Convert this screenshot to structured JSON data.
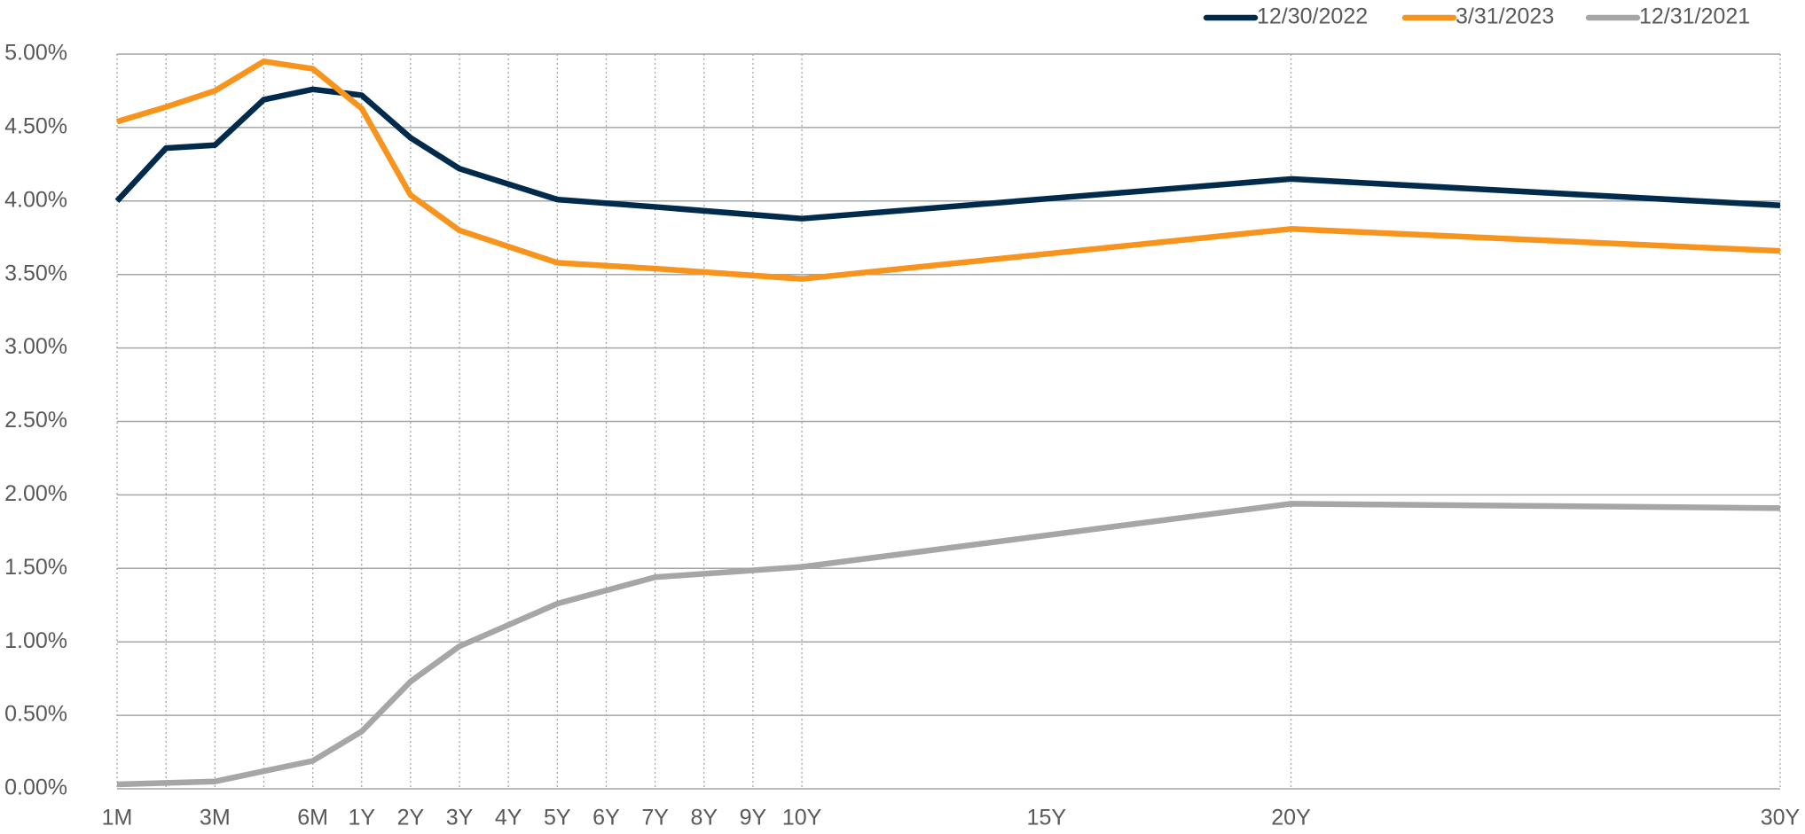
{
  "chart_data": {
    "type": "line",
    "x": [
      0,
      1,
      2,
      3,
      4,
      5,
      6,
      7,
      9,
      11,
      14,
      24,
      34
    ],
    "xlim": [
      0,
      34
    ],
    "xticks": [
      {
        "value": 0,
        "label": "1M"
      },
      {
        "value": 2,
        "label": "3M"
      },
      {
        "value": 4,
        "label": "6M"
      },
      {
        "value": 5,
        "label": "1Y"
      },
      {
        "value": 6,
        "label": "2Y"
      },
      {
        "value": 7,
        "label": "3Y"
      },
      {
        "value": 8,
        "label": "4Y"
      },
      {
        "value": 9,
        "label": "5Y"
      },
      {
        "value": 10,
        "label": "6Y"
      },
      {
        "value": 11,
        "label": "7Y"
      },
      {
        "value": 12,
        "label": "8Y"
      },
      {
        "value": 13,
        "label": "9Y"
      },
      {
        "value": 14,
        "label": "10Y"
      },
      {
        "value": 19,
        "label": "15Y"
      },
      {
        "value": 24,
        "label": "20Y"
      },
      {
        "value": 34,
        "label": "30Y"
      }
    ],
    "xgrid": [
      0,
      1,
      2,
      3,
      4,
      5,
      6,
      7,
      8,
      9,
      10,
      11,
      12,
      13,
      14,
      24,
      34
    ],
    "ylim": [
      0,
      5
    ],
    "yticks": [
      {
        "value": 0,
        "label": "0.00%"
      },
      {
        "value": 0.5,
        "label": "0.50%"
      },
      {
        "value": 1,
        "label": "1.00%"
      },
      {
        "value": 1.5,
        "label": "1.50%"
      },
      {
        "value": 2,
        "label": "2.00%"
      },
      {
        "value": 2.5,
        "label": "2.50%"
      },
      {
        "value": 3,
        "label": "3.00%"
      },
      {
        "value": 3.5,
        "label": "3.50%"
      },
      {
        "value": 4,
        "label": "4.00%"
      },
      {
        "value": 4.5,
        "label": "4.50%"
      },
      {
        "value": 5,
        "label": "5.00%"
      }
    ],
    "grid": true,
    "legend": "top-right",
    "series": [
      {
        "name": "12/30/2022",
        "color": "#002b4d",
        "values": [
          4.0,
          4.36,
          4.38,
          4.69,
          4.76,
          4.72,
          4.43,
          4.22,
          4.01,
          3.96,
          3.88,
          4.15,
          3.97
        ]
      },
      {
        "name": "3/31/2023",
        "color": "#f7941d",
        "values": [
          4.54,
          4.64,
          4.75,
          4.95,
          4.9,
          4.63,
          4.04,
          3.8,
          3.58,
          3.54,
          3.47,
          3.81,
          3.66
        ]
      },
      {
        "name": "12/31/2021",
        "color": "#a6a6a6",
        "values": [
          0.03,
          0.04,
          0.05,
          0.12,
          0.19,
          0.39,
          0.73,
          0.97,
          1.26,
          1.44,
          1.51,
          1.94,
          1.91
        ]
      }
    ]
  }
}
